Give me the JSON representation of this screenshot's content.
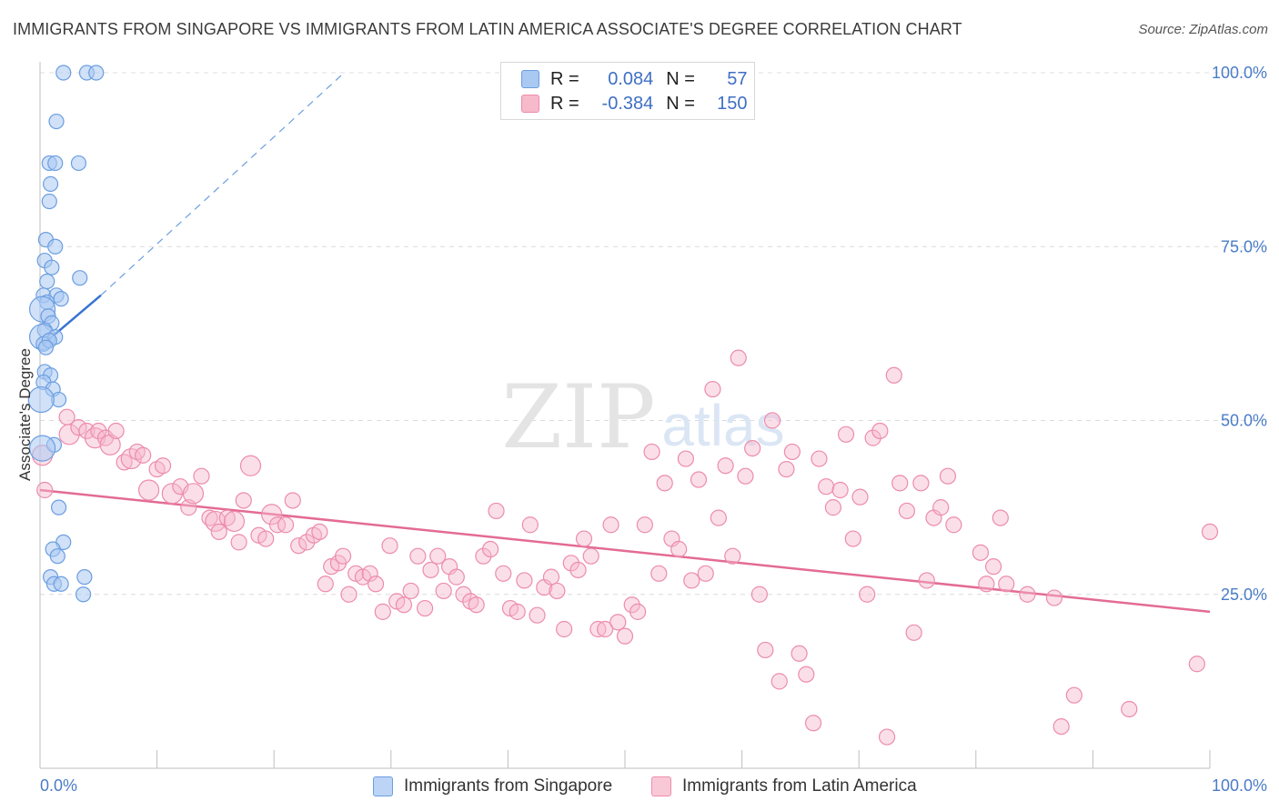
{
  "header": {
    "title": "IMMIGRANTS FROM SINGAPORE VS IMMIGRANTS FROM LATIN AMERICA ASSOCIATE'S DEGREE CORRELATION CHART",
    "source": "Source: ZipAtlas.com"
  },
  "watermark": "ZIPatlas",
  "colors": {
    "singapore_fill": "#a9c8f2",
    "singapore_stroke": "#6b9ee0",
    "singapore_line": "#3873d0",
    "latam_fill": "#f7b9cc",
    "latam_stroke": "#ec8cac",
    "latam_line": "#e36b95",
    "tick_label": "#4a7cc7"
  },
  "legend": {
    "rows": [
      {
        "r_label": "R =",
        "r_value": "0.084",
        "n_label": "N =",
        "n_value": "57"
      },
      {
        "r_label": "R =",
        "r_value": "-0.384",
        "n_label": "N =",
        "n_value": "150"
      }
    ]
  },
  "chart_data": {
    "type": "scatter",
    "title": "IMMIGRANTS FROM SINGAPORE VS IMMIGRANTS FROM LATIN AMERICA ASSOCIATE'S DEGREE CORRELATION CHART",
    "xlabel": "",
    "ylabel": "Associate's Degree",
    "xlim": [
      0,
      100
    ],
    "ylim": [
      0,
      100
    ],
    "x_tick_labels": [
      "0.0%",
      "100.0%"
    ],
    "y_ticks": [
      25,
      50,
      75,
      100
    ],
    "y_tick_labels": [
      "25.0%",
      "50.0%",
      "75.0%",
      "100.0%"
    ],
    "grid": "horizontal dashed",
    "legend_position": "top-center",
    "series": [
      {
        "name": "Immigrants from Singapore",
        "R": 0.084,
        "N": 57,
        "trend": {
          "x": [
            0.3,
            5.2
          ],
          "y": [
            61,
            68
          ],
          "extended_to": {
            "x": 26,
            "y": 100
          }
        },
        "points": [
          {
            "x": 2.0,
            "y": 100
          },
          {
            "x": 4.0,
            "y": 100
          },
          {
            "x": 4.8,
            "y": 100
          },
          {
            "x": 1.4,
            "y": 93
          },
          {
            "x": 0.8,
            "y": 87
          },
          {
            "x": 3.3,
            "y": 87
          },
          {
            "x": 1.3,
            "y": 87
          },
          {
            "x": 0.9,
            "y": 84
          },
          {
            "x": 0.8,
            "y": 81.5
          },
          {
            "x": 0.5,
            "y": 76
          },
          {
            "x": 1.3,
            "y": 75
          },
          {
            "x": 0.4,
            "y": 73
          },
          {
            "x": 1.0,
            "y": 72
          },
          {
            "x": 0.6,
            "y": 70
          },
          {
            "x": 3.4,
            "y": 70.5
          },
          {
            "x": 0.3,
            "y": 68
          },
          {
            "x": 1.4,
            "y": 68
          },
          {
            "x": 1.8,
            "y": 67.5
          },
          {
            "x": 0.6,
            "y": 67
          },
          {
            "x": 0.2,
            "y": 66
          },
          {
            "x": 0.7,
            "y": 65
          },
          {
            "x": 1.0,
            "y": 64
          },
          {
            "x": 0.4,
            "y": 63
          },
          {
            "x": 0.2,
            "y": 62
          },
          {
            "x": 1.3,
            "y": 62
          },
          {
            "x": 0.3,
            "y": 61
          },
          {
            "x": 0.8,
            "y": 61.5
          },
          {
            "x": 0.5,
            "y": 60.5
          },
          {
            "x": 0.4,
            "y": 57
          },
          {
            "x": 0.9,
            "y": 56.5
          },
          {
            "x": 0.3,
            "y": 55.5
          },
          {
            "x": 1.1,
            "y": 54.5
          },
          {
            "x": 1.6,
            "y": 53
          },
          {
            "x": 0.1,
            "y": 53
          },
          {
            "x": 1.2,
            "y": 46.5
          },
          {
            "x": 0.2,
            "y": 46
          },
          {
            "x": 1.6,
            "y": 37.5
          },
          {
            "x": 2.0,
            "y": 32.5
          },
          {
            "x": 1.1,
            "y": 31.5
          },
          {
            "x": 1.5,
            "y": 30.5
          },
          {
            "x": 0.9,
            "y": 27.5
          },
          {
            "x": 3.8,
            "y": 27.5
          },
          {
            "x": 1.2,
            "y": 26.5
          },
          {
            "x": 1.8,
            "y": 26.5
          },
          {
            "x": 3.7,
            "y": 25
          }
        ]
      },
      {
        "name": "Immigrants from Latin America",
        "R": -0.384,
        "N": 150,
        "trend": {
          "x": [
            0,
            100
          ],
          "y": [
            40,
            22.5
          ]
        },
        "points": [
          {
            "x": 0.2,
            "y": 45
          },
          {
            "x": 0.4,
            "y": 40
          },
          {
            "x": 2.3,
            "y": 50.5
          },
          {
            "x": 2.5,
            "y": 48
          },
          {
            "x": 3.3,
            "y": 49
          },
          {
            "x": 4.0,
            "y": 48.5
          },
          {
            "x": 4.7,
            "y": 47.5
          },
          {
            "x": 5.0,
            "y": 48.5
          },
          {
            "x": 5.6,
            "y": 47.5
          },
          {
            "x": 6.0,
            "y": 46.5
          },
          {
            "x": 6.5,
            "y": 48.5
          },
          {
            "x": 7.2,
            "y": 44
          },
          {
            "x": 7.8,
            "y": 44.5
          },
          {
            "x": 8.3,
            "y": 45.5
          },
          {
            "x": 8.8,
            "y": 45
          },
          {
            "x": 9.3,
            "y": 40
          },
          {
            "x": 10.0,
            "y": 43
          },
          {
            "x": 10.5,
            "y": 43.5
          },
          {
            "x": 11.3,
            "y": 39.5
          },
          {
            "x": 12.0,
            "y": 40.5
          },
          {
            "x": 12.7,
            "y": 37.5
          },
          {
            "x": 13.1,
            "y": 39.5
          },
          {
            "x": 13.8,
            "y": 42
          },
          {
            "x": 14.5,
            "y": 36
          },
          {
            "x": 15.0,
            "y": 35.5
          },
          {
            "x": 15.3,
            "y": 34
          },
          {
            "x": 16.0,
            "y": 36
          },
          {
            "x": 16.6,
            "y": 35.5
          },
          {
            "x": 17.0,
            "y": 32.5
          },
          {
            "x": 17.4,
            "y": 38.5
          },
          {
            "x": 18.0,
            "y": 43.5
          },
          {
            "x": 18.7,
            "y": 33.5
          },
          {
            "x": 19.3,
            "y": 33
          },
          {
            "x": 19.8,
            "y": 36.5
          },
          {
            "x": 20.3,
            "y": 35
          },
          {
            "x": 21.0,
            "y": 35
          },
          {
            "x": 21.6,
            "y": 38.5
          },
          {
            "x": 22.1,
            "y": 32
          },
          {
            "x": 22.8,
            "y": 32.5
          },
          {
            "x": 23.4,
            "y": 33.5
          },
          {
            "x": 23.9,
            "y": 34
          },
          {
            "x": 24.4,
            "y": 26.5
          },
          {
            "x": 24.9,
            "y": 29
          },
          {
            "x": 25.5,
            "y": 29.5
          },
          {
            "x": 25.9,
            "y": 30.5
          },
          {
            "x": 26.4,
            "y": 25
          },
          {
            "x": 27.0,
            "y": 28
          },
          {
            "x": 27.6,
            "y": 27.5
          },
          {
            "x": 28.2,
            "y": 28
          },
          {
            "x": 28.7,
            "y": 26.5
          },
          {
            "x": 29.3,
            "y": 22.5
          },
          {
            "x": 29.9,
            "y": 32
          },
          {
            "x": 30.5,
            "y": 24
          },
          {
            "x": 31.1,
            "y": 23.5
          },
          {
            "x": 31.7,
            "y": 25.5
          },
          {
            "x": 32.3,
            "y": 30.5
          },
          {
            "x": 32.9,
            "y": 23
          },
          {
            "x": 33.4,
            "y": 28.5
          },
          {
            "x": 34.0,
            "y": 30.5
          },
          {
            "x": 34.5,
            "y": 25.5
          },
          {
            "x": 35.0,
            "y": 29
          },
          {
            "x": 35.6,
            "y": 27.5
          },
          {
            "x": 36.2,
            "y": 25
          },
          {
            "x": 36.8,
            "y": 24
          },
          {
            "x": 37.3,
            "y": 23.5
          },
          {
            "x": 37.9,
            "y": 30.5
          },
          {
            "x": 38.5,
            "y": 31.5
          },
          {
            "x": 39.0,
            "y": 37
          },
          {
            "x": 39.6,
            "y": 28
          },
          {
            "x": 40.2,
            "y": 23
          },
          {
            "x": 40.8,
            "y": 22.5
          },
          {
            "x": 41.4,
            "y": 27
          },
          {
            "x": 41.9,
            "y": 35
          },
          {
            "x": 42.5,
            "y": 22
          },
          {
            "x": 43.1,
            "y": 26
          },
          {
            "x": 43.7,
            "y": 27.5
          },
          {
            "x": 44.2,
            "y": 25.5
          },
          {
            "x": 44.8,
            "y": 20
          },
          {
            "x": 45.4,
            "y": 29.5
          },
          {
            "x": 46.0,
            "y": 28.5
          },
          {
            "x": 46.5,
            "y": 33
          },
          {
            "x": 47.1,
            "y": 30.5
          },
          {
            "x": 47.7,
            "y": 20
          },
          {
            "x": 48.3,
            "y": 20
          },
          {
            "x": 48.8,
            "y": 35
          },
          {
            "x": 49.4,
            "y": 21
          },
          {
            "x": 50.0,
            "y": 19
          },
          {
            "x": 50.6,
            "y": 23.5
          },
          {
            "x": 51.1,
            "y": 22.5
          },
          {
            "x": 51.7,
            "y": 35
          },
          {
            "x": 52.3,
            "y": 45.5
          },
          {
            "x": 52.9,
            "y": 28
          },
          {
            "x": 53.4,
            "y": 41
          },
          {
            "x": 54.0,
            "y": 33
          },
          {
            "x": 54.6,
            "y": 31.5
          },
          {
            "x": 55.2,
            "y": 44.5
          },
          {
            "x": 55.7,
            "y": 27
          },
          {
            "x": 56.3,
            "y": 41.5
          },
          {
            "x": 56.9,
            "y": 28
          },
          {
            "x": 57.5,
            "y": 54.5
          },
          {
            "x": 58.0,
            "y": 36
          },
          {
            "x": 58.6,
            "y": 43.5
          },
          {
            "x": 59.2,
            "y": 30.5
          },
          {
            "x": 59.7,
            "y": 59
          },
          {
            "x": 60.3,
            "y": 42
          },
          {
            "x": 60.9,
            "y": 46
          },
          {
            "x": 61.5,
            "y": 25
          },
          {
            "x": 62.0,
            "y": 17
          },
          {
            "x": 62.6,
            "y": 50
          },
          {
            "x": 63.2,
            "y": 12.5
          },
          {
            "x": 63.8,
            "y": 43
          },
          {
            "x": 64.3,
            "y": 45.5
          },
          {
            "x": 64.9,
            "y": 16.5
          },
          {
            "x": 65.5,
            "y": 13.5
          },
          {
            "x": 66.1,
            "y": 6.5
          },
          {
            "x": 66.6,
            "y": 44.5
          },
          {
            "x": 67.2,
            "y": 40.5
          },
          {
            "x": 67.8,
            "y": 37.5
          },
          {
            "x": 68.4,
            "y": 40
          },
          {
            "x": 68.9,
            "y": 48
          },
          {
            "x": 69.5,
            "y": 33
          },
          {
            "x": 70.1,
            "y": 39
          },
          {
            "x": 70.7,
            "y": 25
          },
          {
            "x": 71.2,
            "y": 47.5
          },
          {
            "x": 71.8,
            "y": 48.5
          },
          {
            "x": 72.4,
            "y": 4.5
          },
          {
            "x": 73.0,
            "y": 56.5
          },
          {
            "x": 73.5,
            "y": 41
          },
          {
            "x": 74.1,
            "y": 37
          },
          {
            "x": 74.7,
            "y": 19.5
          },
          {
            "x": 75.3,
            "y": 41
          },
          {
            "x": 75.8,
            "y": 27
          },
          {
            "x": 76.4,
            "y": 36
          },
          {
            "x": 77.0,
            "y": 37.5
          },
          {
            "x": 77.6,
            "y": 42
          },
          {
            "x": 78.1,
            "y": 35
          },
          {
            "x": 80.4,
            "y": 31
          },
          {
            "x": 80.9,
            "y": 26.5
          },
          {
            "x": 81.5,
            "y": 29
          },
          {
            "x": 82.1,
            "y": 36
          },
          {
            "x": 82.6,
            "y": 26.5
          },
          {
            "x": 84.4,
            "y": 25
          },
          {
            "x": 86.7,
            "y": 24.5
          },
          {
            "x": 87.3,
            "y": 6
          },
          {
            "x": 88.4,
            "y": 10.5
          },
          {
            "x": 93.1,
            "y": 8.5
          },
          {
            "x": 98.9,
            "y": 15
          },
          {
            "x": 100.0,
            "y": 34
          }
        ]
      }
    ]
  },
  "axes": {
    "x_left_label": "0.0%",
    "x_right_label": "100.0%",
    "y_label": "Associate's Degree"
  },
  "bottom_legend": {
    "items": [
      {
        "label": "Immigrants from Singapore"
      },
      {
        "label": "Immigrants from Latin America"
      }
    ]
  }
}
